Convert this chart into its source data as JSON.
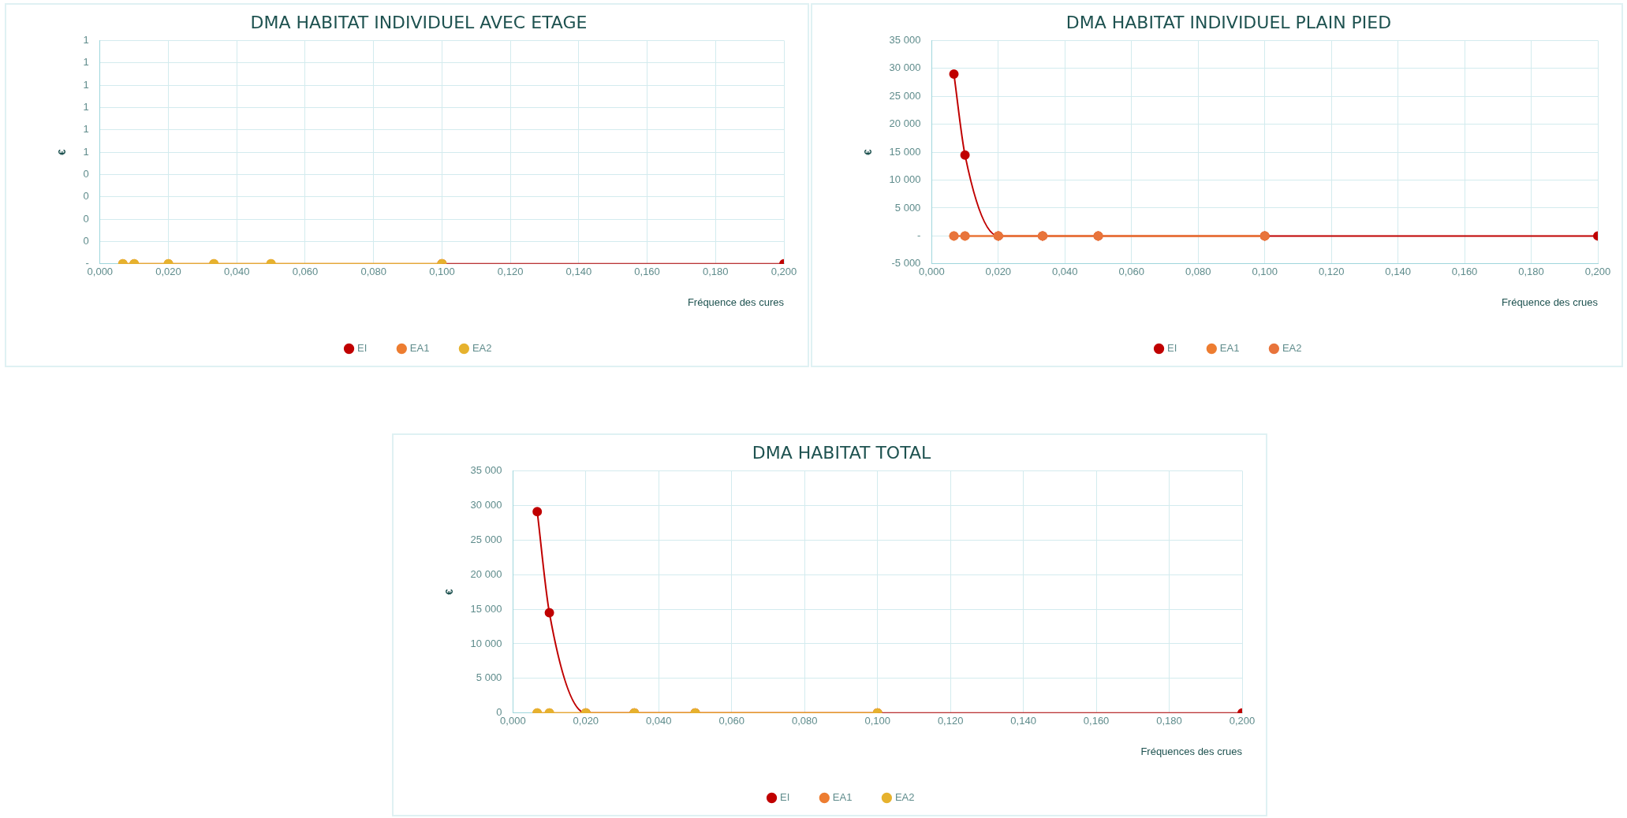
{
  "chart_data": [
    {
      "type": "line",
      "title": "DMA HABITAT INDIVIDUEL AVEC ETAGE",
      "xlabel": "Fréquence des cures",
      "ylabel": "€",
      "grid": true,
      "legend": "bottom",
      "marker": "circle",
      "xlim": [
        0,
        0.2
      ],
      "xticks": [
        {
          "value": 0,
          "label": "0,000"
        },
        {
          "value": 0.02,
          "label": "0,020"
        },
        {
          "value": 0.04,
          "label": "0,040"
        },
        {
          "value": 0.06,
          "label": "0,060"
        },
        {
          "value": 0.08,
          "label": "0,080"
        },
        {
          "value": 0.1,
          "label": "0,100"
        },
        {
          "value": 0.12,
          "label": "0,120"
        },
        {
          "value": 0.14,
          "label": "0,140"
        },
        {
          "value": 0.16,
          "label": "0,160"
        },
        {
          "value": 0.18,
          "label": "0,180"
        },
        {
          "value": 0.2,
          "label": "0,200"
        }
      ],
      "ylim": [
        0,
        1
      ],
      "yticks": [
        {
          "value": 0,
          "label": "-"
        },
        {
          "value": 0.1,
          "label": "0"
        },
        {
          "value": 0.2,
          "label": "0"
        },
        {
          "value": 0.3,
          "label": "0"
        },
        {
          "value": 0.4,
          "label": "0"
        },
        {
          "value": 0.5,
          "label": "1"
        },
        {
          "value": 0.6,
          "label": "1"
        },
        {
          "value": 0.7,
          "label": "1"
        },
        {
          "value": 0.8,
          "label": "1"
        },
        {
          "value": 0.9,
          "label": "1"
        },
        {
          "value": 1,
          "label": "1"
        }
      ],
      "series": [
        {
          "name": "EI",
          "color": "#c00000",
          "x": [
            0.1,
            0.2
          ],
          "values": [
            0,
            0
          ]
        },
        {
          "name": "EA1",
          "color": "#ed7d31",
          "x": [
            0.00667,
            0.01,
            0.02,
            0.0333,
            0.05,
            0.1
          ],
          "values": [
            0,
            0,
            0,
            0,
            0,
            0
          ]
        },
        {
          "name": "EA2",
          "color": "#e6b22e",
          "x": [
            0.00667,
            0.01,
            0.02,
            0.0333,
            0.05,
            0.1
          ],
          "values": [
            0,
            0,
            0,
            0,
            0,
            0
          ]
        }
      ]
    },
    {
      "type": "line",
      "title": "DMA HABITAT INDIVIDUEL PLAIN PIED",
      "xlabel": "Fréquence des crues",
      "ylabel": "€",
      "grid": true,
      "legend": "bottom",
      "marker": "circle",
      "xlim": [
        0,
        0.2
      ],
      "xticks": [
        {
          "value": 0,
          "label": "0,000"
        },
        {
          "value": 0.02,
          "label": "0,020"
        },
        {
          "value": 0.04,
          "label": "0,040"
        },
        {
          "value": 0.06,
          "label": "0,060"
        },
        {
          "value": 0.08,
          "label": "0,080"
        },
        {
          "value": 0.1,
          "label": "0,100"
        },
        {
          "value": 0.12,
          "label": "0,120"
        },
        {
          "value": 0.14,
          "label": "0,140"
        },
        {
          "value": 0.16,
          "label": "0,160"
        },
        {
          "value": 0.18,
          "label": "0,180"
        },
        {
          "value": 0.2,
          "label": "0,200"
        }
      ],
      "ylim": [
        -5000,
        35000
      ],
      "yticks": [
        {
          "value": -5000,
          "label": "-5 000"
        },
        {
          "value": 0,
          "label": "-"
        },
        {
          "value": 5000,
          "label": "5 000"
        },
        {
          "value": 10000,
          "label": "10 000"
        },
        {
          "value": 15000,
          "label": "15 000"
        },
        {
          "value": 20000,
          "label": "20 000"
        },
        {
          "value": 25000,
          "label": "25 000"
        },
        {
          "value": 30000,
          "label": "30 000"
        },
        {
          "value": 35000,
          "label": "35 000"
        }
      ],
      "series": [
        {
          "name": "EI",
          "color": "#c00000",
          "x": [
            0.00667,
            0.01,
            0.02,
            0.0333,
            0.05,
            0.1,
            0.2
          ],
          "values": [
            29000,
            14500,
            0,
            0,
            0,
            0,
            0
          ]
        },
        {
          "name": "EA1",
          "color": "#ed7d31",
          "x": [
            0.00667,
            0.01,
            0.02,
            0.0333,
            0.05,
            0.1
          ],
          "values": [
            0,
            0,
            0,
            0,
            0,
            0
          ]
        },
        {
          "name": "EA2",
          "color": "#e8743b",
          "x": [
            0.00667,
            0.01,
            0.02,
            0.0333,
            0.05,
            0.1
          ],
          "values": [
            0,
            0,
            0,
            0,
            0,
            0
          ]
        }
      ]
    },
    {
      "type": "line",
      "title": "DMA HABITAT TOTAL",
      "xlabel": "Fréquences des crues",
      "ylabel": "€",
      "grid": true,
      "legend": "bottom",
      "marker": "circle",
      "xlim": [
        0,
        0.2
      ],
      "xticks": [
        {
          "value": 0,
          "label": "0,000"
        },
        {
          "value": 0.02,
          "label": "0,020"
        },
        {
          "value": 0.04,
          "label": "0,040"
        },
        {
          "value": 0.06,
          "label": "0,060"
        },
        {
          "value": 0.08,
          "label": "0,080"
        },
        {
          "value": 0.1,
          "label": "0,100"
        },
        {
          "value": 0.12,
          "label": "0,120"
        },
        {
          "value": 0.14,
          "label": "0,140"
        },
        {
          "value": 0.16,
          "label": "0,160"
        },
        {
          "value": 0.18,
          "label": "0,180"
        },
        {
          "value": 0.2,
          "label": "0,200"
        }
      ],
      "ylim": [
        0,
        35000
      ],
      "yticks": [
        0,
        {
          "value": 5000,
          "label": "5 000"
        },
        {
          "value": 10000,
          "label": "10 000"
        },
        {
          "value": 15000,
          "label": "15 000"
        },
        {
          "value": 20000,
          "label": "20 000"
        },
        {
          "value": 25000,
          "label": "25 000"
        },
        {
          "value": 30000,
          "label": "30 000"
        },
        {
          "value": 35000,
          "label": "35 000"
        }
      ],
      "series": [
        {
          "name": "EI",
          "color": "#c00000",
          "x": [
            0.00667,
            0.01,
            0.02,
            0.0333,
            0.05,
            0.1,
            0.2
          ],
          "values": [
            29100,
            14500,
            0,
            0,
            0,
            0,
            0
          ]
        },
        {
          "name": "EA1",
          "color": "#ed7d31",
          "x": [
            0.00667,
            0.01,
            0.02,
            0.0333,
            0.05,
            0.1
          ],
          "values": [
            0,
            0,
            0,
            0,
            0,
            0
          ]
        },
        {
          "name": "EA2",
          "color": "#e6b22e",
          "x": [
            0.00667,
            0.01,
            0.02,
            0.0333,
            0.05,
            0.1
          ],
          "values": [
            0,
            0,
            0,
            0,
            0,
            0
          ]
        }
      ]
    }
  ]
}
